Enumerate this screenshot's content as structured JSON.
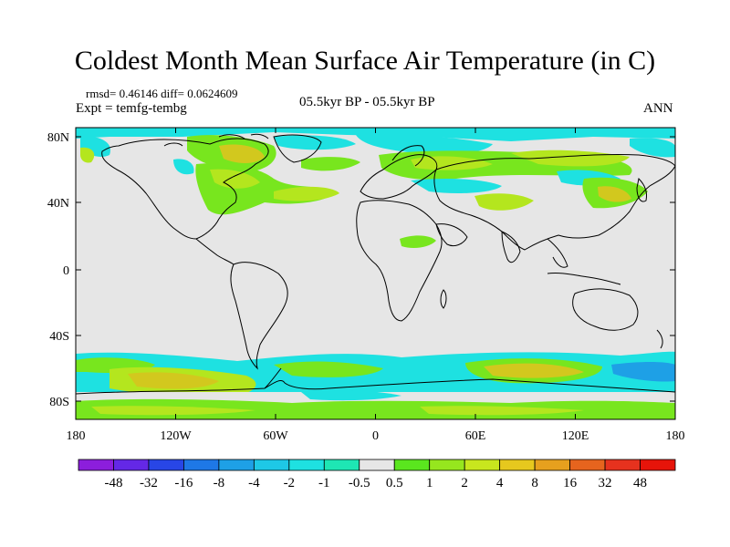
{
  "title": "Coldest Month Mean Surface Air Temperature (in C)",
  "stats": "rmsd= 0.46146 diff= 0.0624609",
  "experiment": "Expt = temfg-tembg",
  "period": "05.5kyr BP - 05.5kyr BP",
  "season": "ANN",
  "colors": {
    "land_fill": "#e6e6e6",
    "coast": "#000000",
    "cyan": "#1ee1e1",
    "teal": "#1ee6b4",
    "green": "#78e61e",
    "lime": "#b4e61e",
    "olive": "#d2c81e"
  },
  "axes": {
    "lon_ticks": [
      "180",
      "120W",
      "60W",
      "0",
      "60E",
      "120E",
      "180"
    ],
    "lat_ticks": [
      "80N",
      "40N",
      "0",
      "40S",
      "80S"
    ]
  },
  "colorbar": {
    "labels": [
      "-48",
      "-32",
      "-16",
      "-8",
      "-4",
      "-2",
      "-1",
      "-0.5",
      "0.5",
      "1",
      "2",
      "4",
      "8",
      "16",
      "32",
      "48"
    ],
    "colors": [
      "#8c1edc",
      "#6428e6",
      "#2846e6",
      "#1e78e6",
      "#1ea0e6",
      "#1ec8e6",
      "#1ee1e1",
      "#1ee6b4",
      "#e6e6e6",
      "#5ae61e",
      "#96e61e",
      "#c8e61e",
      "#e6c81e",
      "#e6a01e",
      "#e6641e",
      "#e6321e",
      "#e6140a"
    ]
  }
}
